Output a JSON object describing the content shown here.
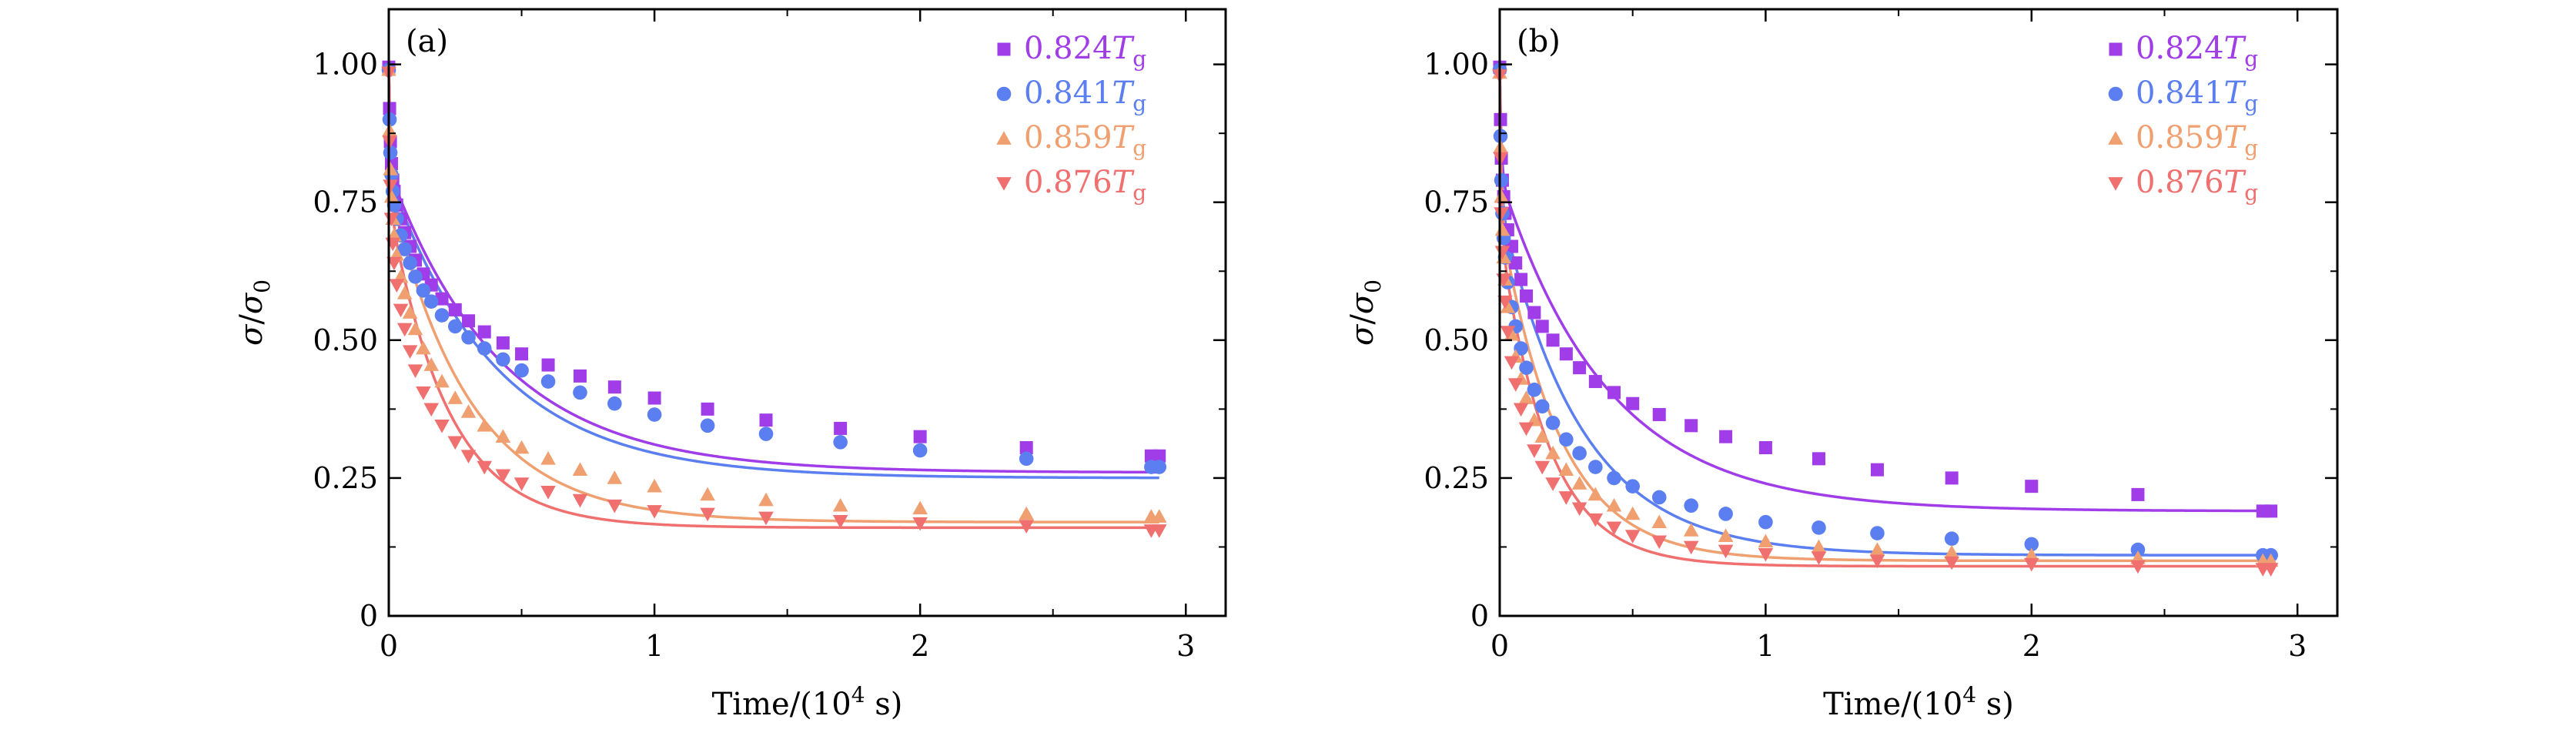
{
  "chart_data": [
    {
      "type": "scatter",
      "panel_label": "(a)",
      "xlabel_parts": {
        "pre": "Time/(10",
        "sup": "4",
        "post": " s)"
      },
      "ylabel_parts": {
        "sym1": "σ",
        "slash": "/",
        "sym2": "σ",
        "sub": "0"
      },
      "xlim": [
        0,
        3.15
      ],
      "ylim": [
        0,
        1.1
      ],
      "xticks": [
        0,
        1,
        2,
        3
      ],
      "xtick_labels": [
        "0",
        "1",
        "2",
        "3"
      ],
      "yticks": [
        0,
        0.25,
        0.5,
        0.75,
        1.0
      ],
      "ytick_labels": [
        "0",
        "0.25",
        "0.50",
        "0.75",
        "1.00"
      ],
      "legend_position": "top-right",
      "series": [
        {
          "name": "0.824",
          "subscript": "g",
          "symbol": "T",
          "color": "#a03ce8",
          "marker": "square",
          "fit": {
            "plateau": 0.26,
            "a1": 0.19,
            "tau1": 0.006,
            "a2": 0.55,
            "tau2": 0.42
          },
          "x": [
            0.0,
            0.003,
            0.006,
            0.01,
            0.015,
            0.02,
            0.03,
            0.045,
            0.06,
            0.08,
            0.1,
            0.13,
            0.16,
            0.2,
            0.25,
            0.3,
            0.36,
            0.43,
            0.5,
            0.6,
            0.72,
            0.85,
            1.0,
            1.2,
            1.42,
            1.7,
            2.0,
            2.4,
            2.87,
            2.9
          ],
          "y": [
            0.995,
            0.92,
            0.86,
            0.82,
            0.79,
            0.77,
            0.745,
            0.72,
            0.695,
            0.67,
            0.645,
            0.62,
            0.6,
            0.575,
            0.555,
            0.535,
            0.515,
            0.495,
            0.475,
            0.455,
            0.435,
            0.415,
            0.395,
            0.375,
            0.355,
            0.34,
            0.325,
            0.305,
            0.29,
            0.29
          ]
        },
        {
          "name": "0.841",
          "subscript": "g",
          "symbol": "T",
          "color": "#5b7ff0",
          "marker": "circle",
          "fit": {
            "plateau": 0.25,
            "a1": 0.2,
            "tau1": 0.006,
            "a2": 0.55,
            "tau2": 0.4
          },
          "x": [
            0.0,
            0.003,
            0.006,
            0.01,
            0.015,
            0.02,
            0.03,
            0.045,
            0.06,
            0.08,
            0.1,
            0.13,
            0.16,
            0.2,
            0.25,
            0.3,
            0.36,
            0.43,
            0.5,
            0.6,
            0.72,
            0.85,
            1.0,
            1.2,
            1.42,
            1.7,
            2.0,
            2.4,
            2.87,
            2.9
          ],
          "y": [
            0.99,
            0.9,
            0.84,
            0.8,
            0.77,
            0.745,
            0.72,
            0.69,
            0.665,
            0.64,
            0.615,
            0.59,
            0.57,
            0.545,
            0.525,
            0.505,
            0.485,
            0.465,
            0.445,
            0.425,
            0.405,
            0.385,
            0.365,
            0.345,
            0.33,
            0.315,
            0.3,
            0.285,
            0.27,
            0.27
          ]
        },
        {
          "name": "0.859",
          "subscript": "g",
          "symbol": "T",
          "color": "#f0a070",
          "marker": "triangle-up",
          "fit": {
            "plateau": 0.17,
            "a1": 0.22,
            "tau1": 0.006,
            "a2": 0.61,
            "tau2": 0.3
          },
          "x": [
            0.0,
            0.003,
            0.006,
            0.01,
            0.015,
            0.02,
            0.03,
            0.045,
            0.06,
            0.08,
            0.1,
            0.13,
            0.16,
            0.2,
            0.25,
            0.3,
            0.36,
            0.43,
            0.5,
            0.6,
            0.72,
            0.85,
            1.0,
            1.2,
            1.42,
            1.7,
            2.0,
            2.4,
            2.87,
            2.9
          ],
          "y": [
            0.99,
            0.88,
            0.81,
            0.76,
            0.72,
            0.69,
            0.655,
            0.615,
            0.585,
            0.55,
            0.52,
            0.485,
            0.455,
            0.425,
            0.395,
            0.37,
            0.345,
            0.325,
            0.305,
            0.285,
            0.265,
            0.25,
            0.235,
            0.22,
            0.21,
            0.2,
            0.195,
            0.185,
            0.18,
            0.18
          ]
        },
        {
          "name": "0.876",
          "subscript": "g",
          "symbol": "T",
          "color": "#f07070",
          "marker": "triangle-down",
          "fit": {
            "plateau": 0.16,
            "a1": 0.25,
            "tau1": 0.006,
            "a2": 0.59,
            "tau2": 0.22
          },
          "x": [
            0.0,
            0.003,
            0.006,
            0.01,
            0.015,
            0.02,
            0.03,
            0.045,
            0.06,
            0.08,
            0.1,
            0.13,
            0.16,
            0.2,
            0.25,
            0.3,
            0.36,
            0.43,
            0.5,
            0.6,
            0.72,
            0.85,
            1.0,
            1.2,
            1.42,
            1.7,
            2.0,
            2.4,
            2.87,
            2.9
          ],
          "y": [
            0.985,
            0.86,
            0.78,
            0.72,
            0.675,
            0.64,
            0.6,
            0.555,
            0.52,
            0.48,
            0.445,
            0.405,
            0.375,
            0.345,
            0.315,
            0.29,
            0.27,
            0.255,
            0.24,
            0.225,
            0.21,
            0.2,
            0.19,
            0.185,
            0.178,
            0.172,
            0.168,
            0.163,
            0.155,
            0.155
          ]
        }
      ]
    },
    {
      "type": "scatter",
      "panel_label": "(b)",
      "xlabel_parts": {
        "pre": "Time/(10",
        "sup": "4",
        "post": " s)"
      },
      "ylabel_parts": {
        "sym1": "σ",
        "slash": "/",
        "sym2": "σ",
        "sub": "0"
      },
      "xlim": [
        0,
        3.15
      ],
      "ylim": [
        0,
        1.1
      ],
      "xticks": [
        0,
        1,
        2,
        3
      ],
      "xtick_labels": [
        "0",
        "1",
        "2",
        "3"
      ],
      "yticks": [
        0,
        0.25,
        0.5,
        0.75,
        1.0
      ],
      "ytick_labels": [
        "0",
        "0.25",
        "0.50",
        "0.75",
        "1.00"
      ],
      "legend_position": "top-right",
      "series": [
        {
          "name": "0.824",
          "subscript": "g",
          "symbol": "T",
          "color": "#a03ce8",
          "marker": "square",
          "fit": {
            "plateau": 0.19,
            "a1": 0.2,
            "tau1": 0.006,
            "a2": 0.61,
            "tau2": 0.4
          },
          "x": [
            0.0,
            0.003,
            0.006,
            0.01,
            0.015,
            0.02,
            0.03,
            0.045,
            0.06,
            0.08,
            0.1,
            0.13,
            0.16,
            0.2,
            0.25,
            0.3,
            0.36,
            0.43,
            0.5,
            0.6,
            0.72,
            0.85,
            1.0,
            1.2,
            1.42,
            1.7,
            2.0,
            2.4,
            2.87,
            2.9
          ],
          "y": [
            0.995,
            0.9,
            0.83,
            0.79,
            0.76,
            0.73,
            0.7,
            0.67,
            0.64,
            0.61,
            0.58,
            0.55,
            0.525,
            0.5,
            0.475,
            0.45,
            0.425,
            0.405,
            0.385,
            0.365,
            0.345,
            0.325,
            0.305,
            0.285,
            0.265,
            0.25,
            0.235,
            0.22,
            0.19,
            0.19
          ]
        },
        {
          "name": "0.841",
          "subscript": "g",
          "symbol": "T",
          "color": "#5b7ff0",
          "marker": "circle",
          "fit": {
            "plateau": 0.11,
            "a1": 0.25,
            "tau1": 0.006,
            "a2": 0.64,
            "tau2": 0.3
          },
          "x": [
            0.0,
            0.003,
            0.006,
            0.01,
            0.015,
            0.02,
            0.03,
            0.045,
            0.06,
            0.08,
            0.1,
            0.13,
            0.16,
            0.2,
            0.25,
            0.3,
            0.36,
            0.43,
            0.5,
            0.6,
            0.72,
            0.85,
            1.0,
            1.2,
            1.42,
            1.7,
            2.0,
            2.4,
            2.87,
            2.9
          ],
          "y": [
            0.99,
            0.87,
            0.79,
            0.73,
            0.685,
            0.65,
            0.605,
            0.56,
            0.525,
            0.485,
            0.45,
            0.41,
            0.38,
            0.35,
            0.32,
            0.295,
            0.27,
            0.25,
            0.235,
            0.215,
            0.2,
            0.185,
            0.17,
            0.16,
            0.15,
            0.14,
            0.13,
            0.12,
            0.11,
            0.11
          ]
        },
        {
          "name": "0.859",
          "subscript": "g",
          "symbol": "T",
          "color": "#f0a070",
          "marker": "triangle-up",
          "fit": {
            "plateau": 0.1,
            "a1": 0.27,
            "tau1": 0.006,
            "a2": 0.63,
            "tau2": 0.22
          },
          "x": [
            0.0,
            0.003,
            0.006,
            0.01,
            0.015,
            0.02,
            0.03,
            0.045,
            0.06,
            0.08,
            0.1,
            0.13,
            0.16,
            0.2,
            0.25,
            0.3,
            0.36,
            0.43,
            0.5,
            0.6,
            0.72,
            0.85,
            1.0,
            1.2,
            1.42,
            1.7,
            2.0,
            2.4,
            2.87,
            2.9
          ],
          "y": [
            0.985,
            0.85,
            0.76,
            0.7,
            0.65,
            0.61,
            0.56,
            0.51,
            0.47,
            0.43,
            0.395,
            0.355,
            0.325,
            0.295,
            0.265,
            0.24,
            0.22,
            0.2,
            0.185,
            0.17,
            0.155,
            0.145,
            0.135,
            0.125,
            0.12,
            0.115,
            0.11,
            0.105,
            0.1,
            0.1
          ]
        },
        {
          "name": "0.876",
          "subscript": "g",
          "symbol": "T",
          "color": "#f07070",
          "marker": "triangle-down",
          "fit": {
            "plateau": 0.09,
            "a1": 0.3,
            "tau1": 0.006,
            "a2": 0.61,
            "tau2": 0.18
          },
          "x": [
            0.0,
            0.003,
            0.006,
            0.01,
            0.015,
            0.02,
            0.03,
            0.045,
            0.06,
            0.08,
            0.1,
            0.13,
            0.16,
            0.2,
            0.25,
            0.3,
            0.36,
            0.43,
            0.5,
            0.6,
            0.72,
            0.85,
            1.0,
            1.2,
            1.42,
            1.7,
            2.0,
            2.4,
            2.87,
            2.9
          ],
          "y": [
            0.98,
            0.83,
            0.73,
            0.66,
            0.61,
            0.57,
            0.515,
            0.46,
            0.42,
            0.375,
            0.34,
            0.3,
            0.27,
            0.24,
            0.215,
            0.195,
            0.175,
            0.16,
            0.145,
            0.135,
            0.125,
            0.118,
            0.112,
            0.106,
            0.1,
            0.097,
            0.094,
            0.09,
            0.085,
            0.085
          ]
        }
      ]
    }
  ]
}
